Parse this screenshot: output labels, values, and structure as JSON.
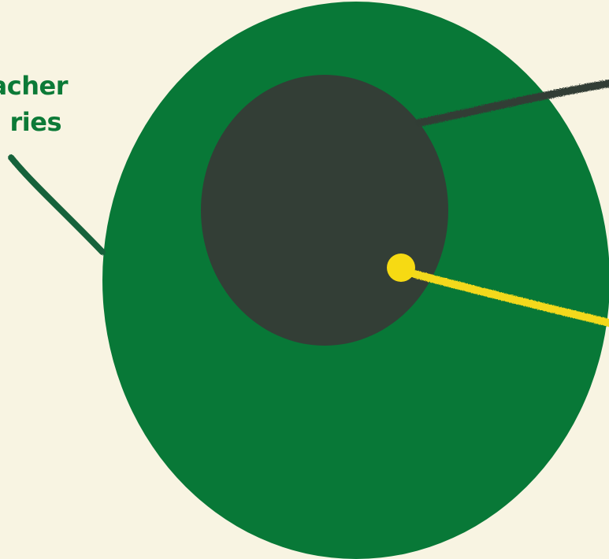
{
  "labels": {
    "left_line1": "acher",
    "left_line2": "ries"
  },
  "colors": {
    "background": "#f8f4e2",
    "outer_circle": "#087837",
    "inner_circle": "#333e36",
    "dot": "#f6da13",
    "label_text": "#0c7a37",
    "left_connector": "#18623a",
    "dark_connector": "#333e36",
    "yellow_connector": "#f3d91a"
  }
}
